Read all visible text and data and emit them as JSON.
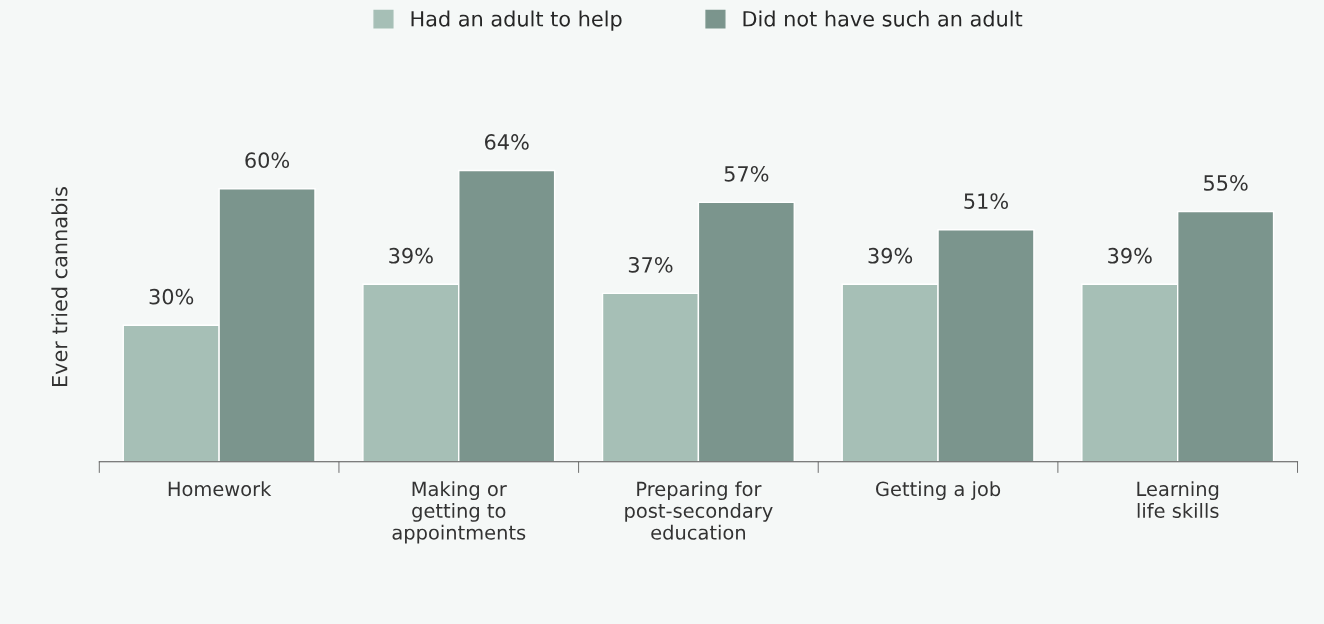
{
  "chart_data": {
    "type": "bar",
    "ylabel": "Ever tried cannabis",
    "categories": [
      "Homework",
      "Making or\ngetting to\nappointments",
      "Preparing for\npost-secondary\neducation",
      "Getting a job",
      "Learning\nlife skills"
    ],
    "series": [
      {
        "name": "Had an adult to help",
        "color": "#a6bfb6",
        "values": [
          30,
          39,
          37,
          39,
          39
        ],
        "value_labels": [
          "30%",
          "39%",
          "37%",
          "39%",
          "39%"
        ]
      },
      {
        "name": "Did not have such an adult",
        "color": "#7b958d",
        "values": [
          60,
          64,
          57,
          51,
          55
        ],
        "value_labels": [
          "60%",
          "64%",
          "57%",
          "51%",
          "55%"
        ]
      }
    ],
    "legend": "top",
    "grid": false
  }
}
